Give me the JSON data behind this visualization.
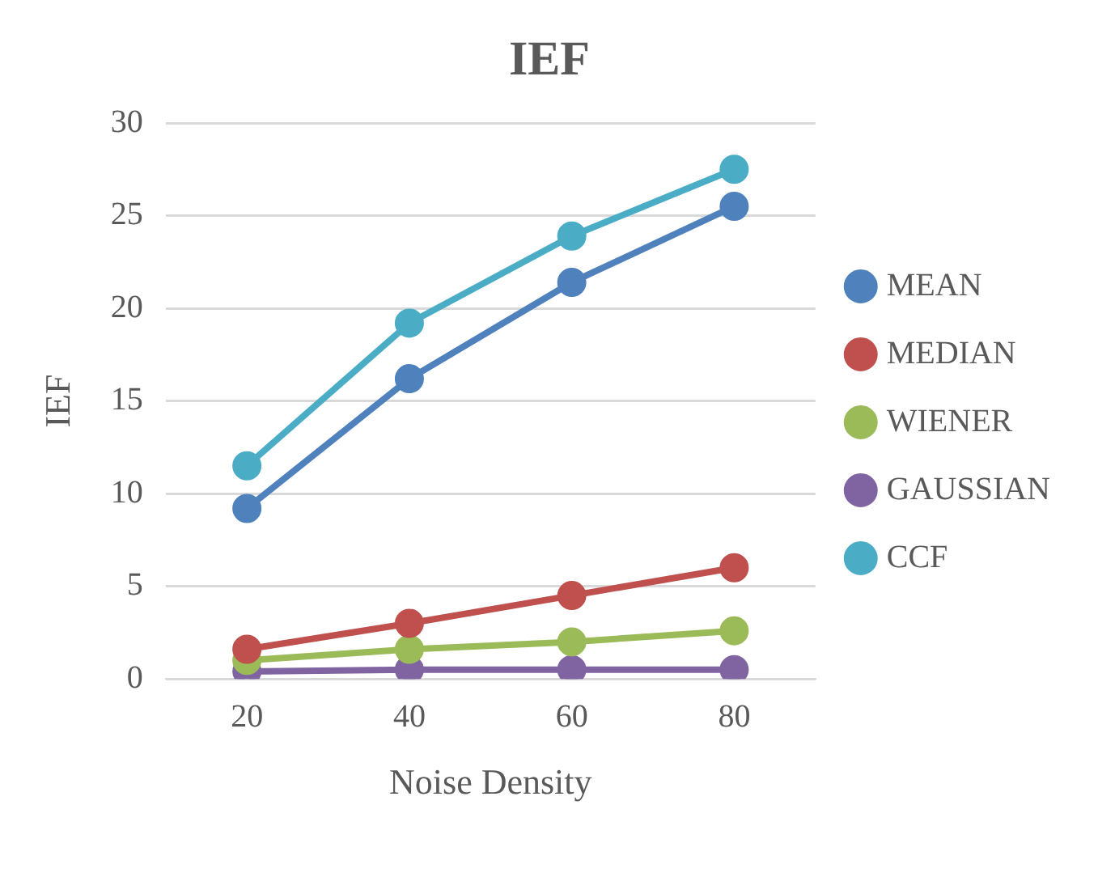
{
  "chart_data": {
    "type": "line",
    "title": "IEF",
    "xlabel": "Noise Density",
    "ylabel": "IEF",
    "categories": [
      "20",
      "40",
      "60",
      "80"
    ],
    "series": [
      {
        "name": "MEAN",
        "color": "#4f81bd",
        "values": [
          9.2,
          16.2,
          21.4,
          25.5
        ]
      },
      {
        "name": "MEDIAN",
        "color": "#c0504d",
        "values": [
          1.6,
          3.0,
          4.5,
          6.0
        ]
      },
      {
        "name": "WIENER",
        "color": "#9bbb59",
        "values": [
          1.0,
          1.6,
          2.0,
          2.6
        ]
      },
      {
        "name": "GAUSSIAN",
        "color": "#8064a2",
        "values": [
          0.4,
          0.5,
          0.5,
          0.5
        ]
      },
      {
        "name": "CCF",
        "color": "#4bacc6",
        "values": [
          11.5,
          19.2,
          23.9,
          27.5
        ]
      }
    ],
    "ylim": [
      0,
      30
    ],
    "yticks": [
      0,
      5,
      10,
      15,
      20,
      25,
      30
    ],
    "grid": "y",
    "legend": "right",
    "marker": "circle",
    "line_style": "solid"
  }
}
